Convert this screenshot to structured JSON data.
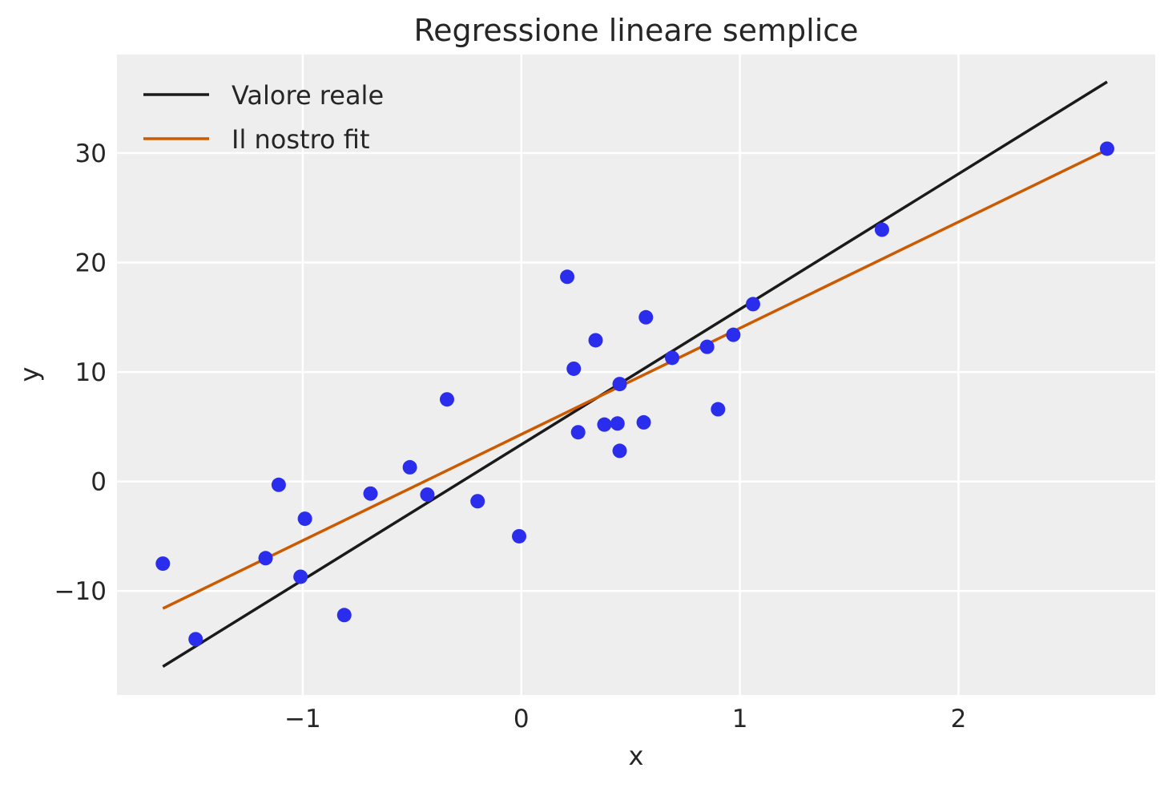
{
  "chart_data": {
    "type": "scatter",
    "title": "Regressione lineare semplice",
    "xlabel": "x",
    "ylabel": "y",
    "xlim": [
      -1.85,
      2.9
    ],
    "ylim": [
      -19.5,
      39.0
    ],
    "xticks": [
      -1,
      0,
      1,
      2
    ],
    "yticks": [
      -10,
      0,
      10,
      20,
      30
    ],
    "xtick_labels": [
      "−1",
      "0",
      "1",
      "2"
    ],
    "ytick_labels": [
      "−10",
      "0",
      "10",
      "20",
      "30"
    ],
    "grid": true,
    "legend_position": "top-left",
    "background_color": "#eeeeee",
    "grid_color": "#ffffff",
    "points_color": "#2a2eec",
    "points": [
      {
        "x": -1.64,
        "y": -7.5
      },
      {
        "x": -1.49,
        "y": -14.4
      },
      {
        "x": -1.17,
        "y": -7.0
      },
      {
        "x": -1.11,
        "y": -0.3
      },
      {
        "x": -1.01,
        "y": -8.7
      },
      {
        "x": -0.99,
        "y": -3.4
      },
      {
        "x": -0.81,
        "y": -12.2
      },
      {
        "x": -0.69,
        "y": -1.1
      },
      {
        "x": -0.51,
        "y": 1.3
      },
      {
        "x": -0.43,
        "y": -1.2
      },
      {
        "x": -0.34,
        "y": 7.5
      },
      {
        "x": -0.2,
        "y": -1.8
      },
      {
        "x": -0.01,
        "y": -5.0
      },
      {
        "x": 0.21,
        "y": 18.7
      },
      {
        "x": 0.24,
        "y": 10.3
      },
      {
        "x": 0.26,
        "y": 4.5
      },
      {
        "x": 0.34,
        "y": 12.9
      },
      {
        "x": 0.38,
        "y": 5.2
      },
      {
        "x": 0.44,
        "y": 5.3
      },
      {
        "x": 0.45,
        "y": 8.9
      },
      {
        "x": 0.45,
        "y": 2.8
      },
      {
        "x": 0.56,
        "y": 5.4
      },
      {
        "x": 0.57,
        "y": 15.0
      },
      {
        "x": 0.69,
        "y": 11.3
      },
      {
        "x": 0.85,
        "y": 12.3
      },
      {
        "x": 0.9,
        "y": 6.6
      },
      {
        "x": 0.97,
        "y": 13.4
      },
      {
        "x": 1.06,
        "y": 16.2
      },
      {
        "x": 1.65,
        "y": 23.0
      },
      {
        "x": 2.68,
        "y": 30.4
      }
    ],
    "series": [
      {
        "name": "Valore reale",
        "type": "line",
        "color": "#1a1a1a",
        "x": [
          -1.64,
          2.68
        ],
        "y": [
          -16.9,
          36.5
        ]
      },
      {
        "name": "Il nostro fit",
        "type": "line",
        "color": "#cc5a00",
        "x": [
          -1.64,
          2.68
        ],
        "y": [
          -11.6,
          30.3
        ]
      }
    ]
  }
}
